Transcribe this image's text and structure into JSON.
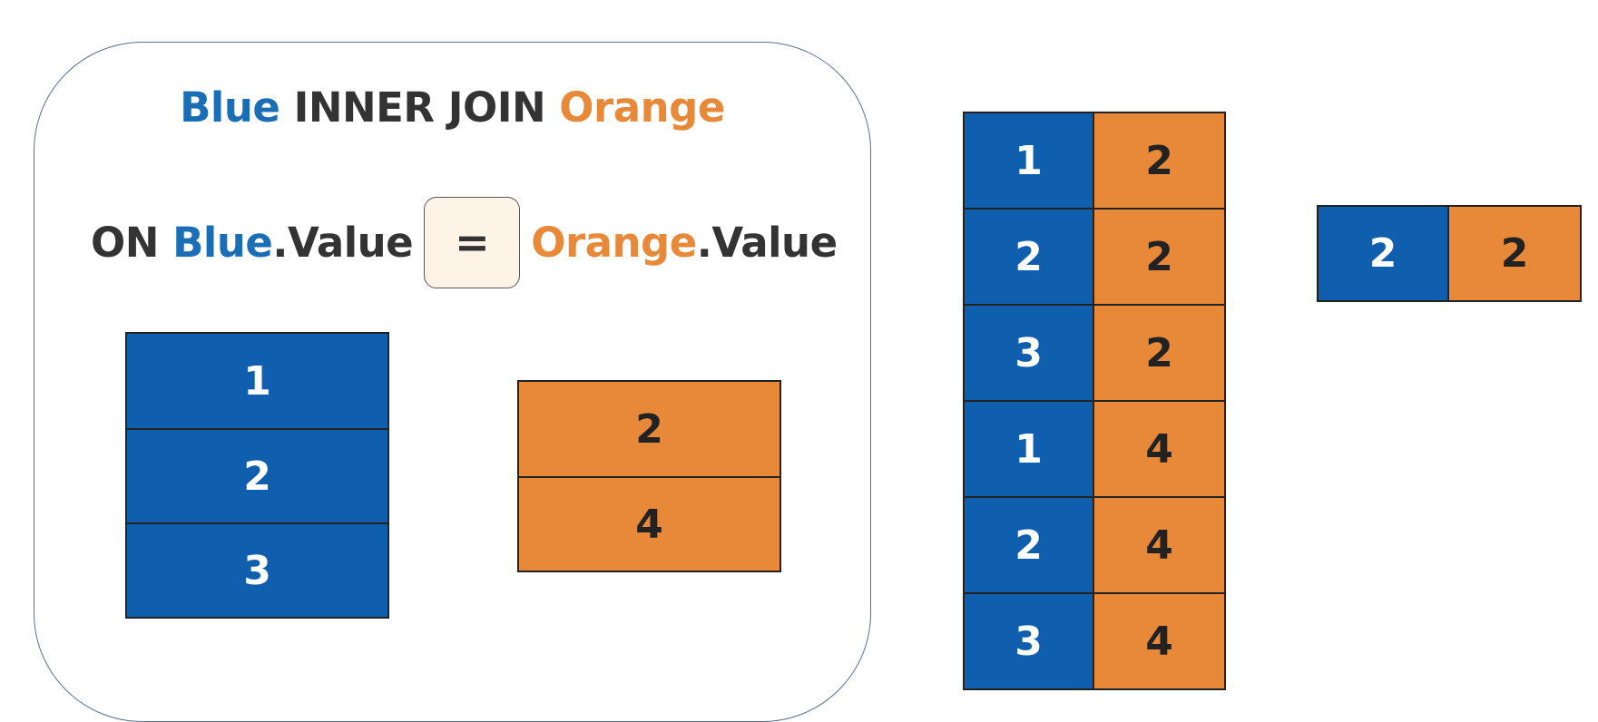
{
  "title": {
    "left": "Blue",
    "op": "INNER JOIN",
    "right": "Orange"
  },
  "condition": {
    "on": "ON",
    "left_table": "Blue",
    "left_field": ".Value",
    "operator": "=",
    "right_table": "Orange",
    "right_field": ".Value"
  },
  "blue_table": [
    "1",
    "2",
    "3"
  ],
  "orange_table": [
    "2",
    "4"
  ],
  "cross_product": [
    {
      "blue": "1",
      "orange": "2"
    },
    {
      "blue": "2",
      "orange": "2"
    },
    {
      "blue": "3",
      "orange": "2"
    },
    {
      "blue": "1",
      "orange": "4"
    },
    {
      "blue": "2",
      "orange": "4"
    },
    {
      "blue": "3",
      "orange": "4"
    }
  ],
  "result": [
    {
      "blue": "2",
      "orange": "2"
    }
  ],
  "colors": {
    "blue": "#0f5fae",
    "orange": "#e8893a",
    "text": "#333333",
    "operator_bg": "#fdf3e6"
  }
}
